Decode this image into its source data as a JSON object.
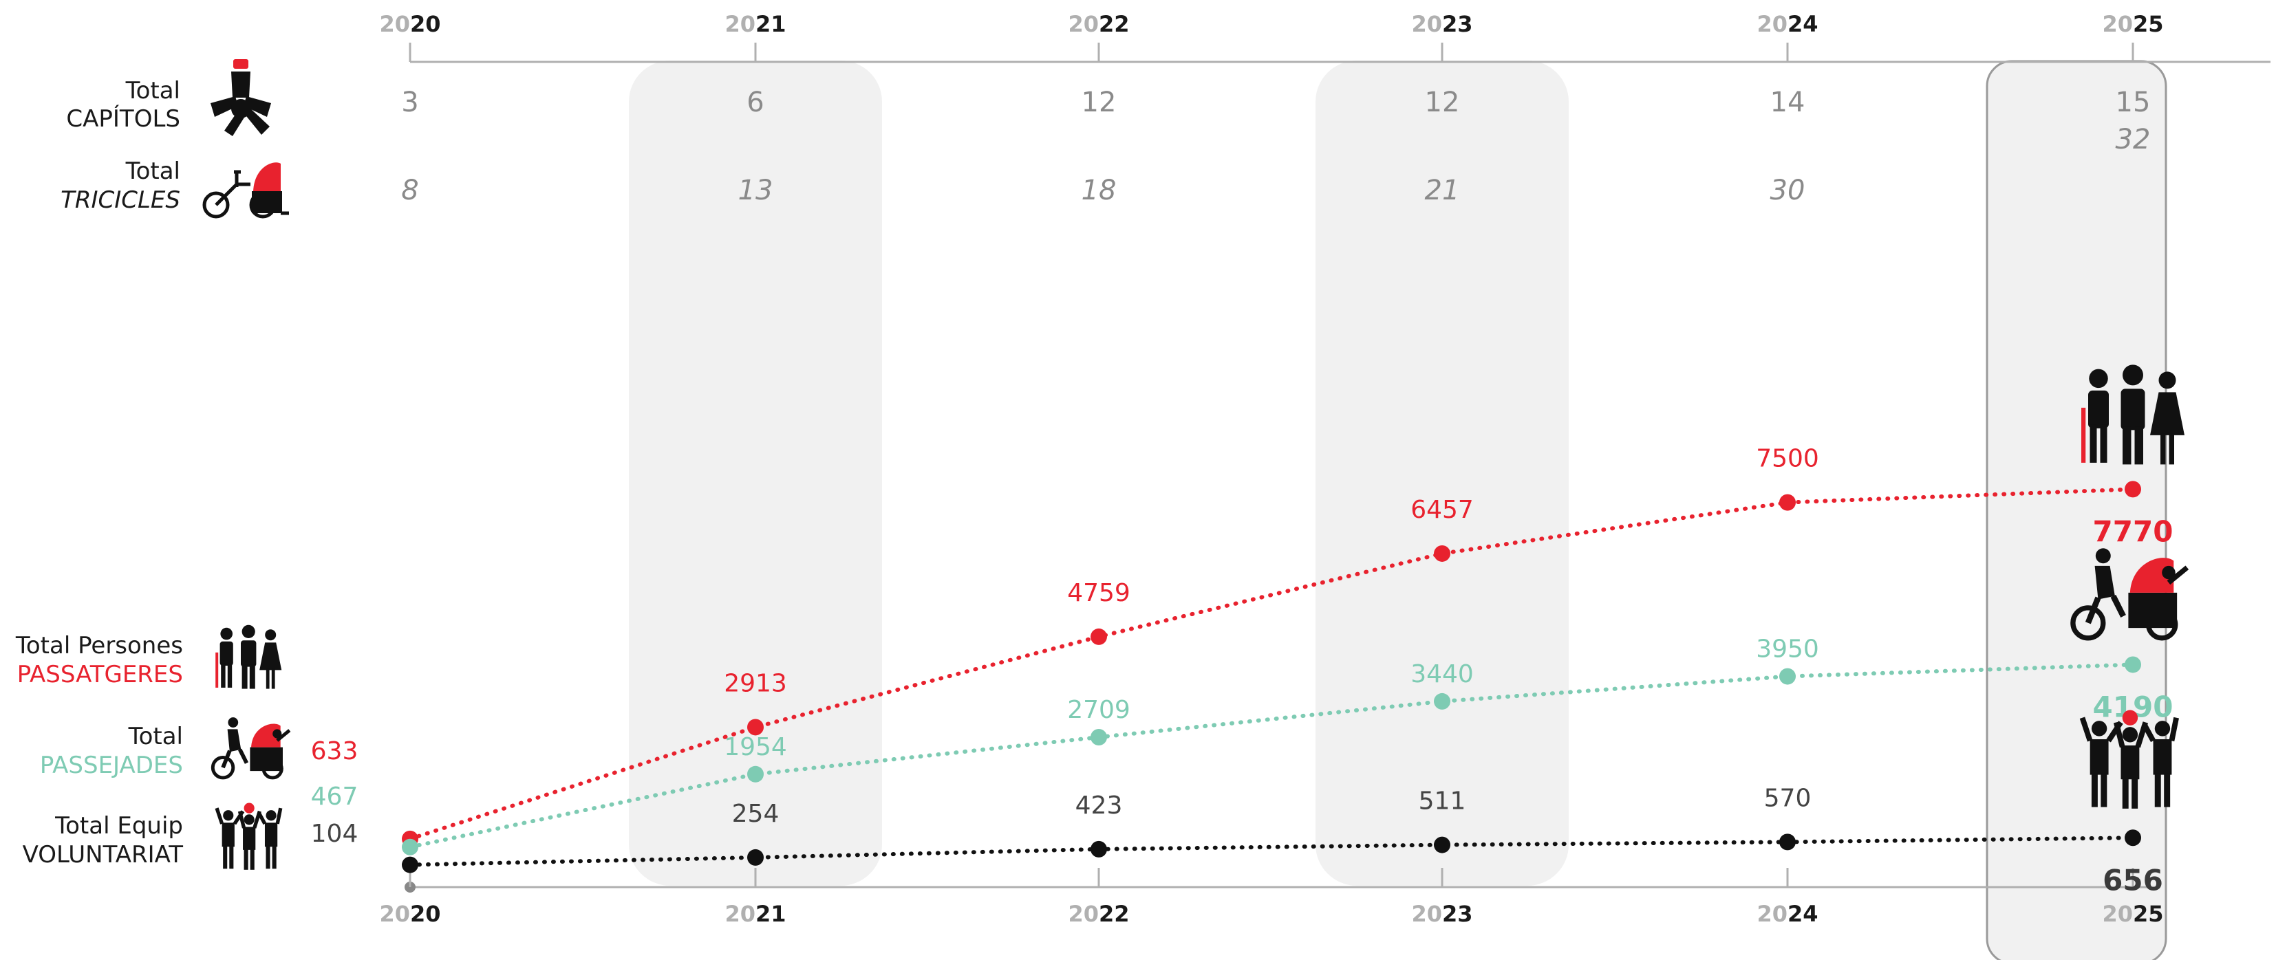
{
  "chart_data": {
    "type": "line",
    "x": [
      "2020",
      "2021",
      "2022",
      "2023",
      "2024",
      "2025"
    ],
    "x_label_parts": [
      {
        "prefix": "20",
        "suffix": "20"
      },
      {
        "prefix": "20",
        "suffix": "21"
      },
      {
        "prefix": "20",
        "suffix": "22"
      },
      {
        "prefix": "20",
        "suffix": "23"
      },
      {
        "prefix": "20",
        "suffix": "24"
      },
      {
        "prefix": "20",
        "suffix": "25"
      }
    ],
    "highlighted_years": [
      "2021",
      "2023"
    ],
    "current_year": "2025",
    "series": [
      {
        "key": "passatgeres",
        "values": [
          633,
          2913,
          4759,
          6457,
          7500,
          7770
        ],
        "color": "#e8222e",
        "icon": "group-of-people-icon"
      },
      {
        "key": "passejades",
        "values": [
          467,
          1954,
          2709,
          3440,
          3950,
          4190
        ],
        "color": "#7ecbb3",
        "icon": "trishaw-ride-icon"
      },
      {
        "key": "voluntariat",
        "values": [
          104,
          254,
          423,
          511,
          570,
          656
        ],
        "color": "#111111",
        "icon": "volunteer-team-icon"
      }
    ],
    "totals_rows": [
      {
        "key": "capitols",
        "values": [
          3,
          6,
          12,
          12,
          14,
          15
        ],
        "icon": "joined-hands-icon"
      },
      {
        "key": "tricicles",
        "values": [
          8,
          13,
          18,
          21,
          30,
          32
        ],
        "icon": "trishaw-icon"
      }
    ],
    "ylim": [
      0,
      8200
    ],
    "grid": false,
    "legend_position": "left"
  },
  "legend": {
    "capitols": {
      "line1": "Total",
      "line2": "CAPÍTOLS"
    },
    "tricicles": {
      "line1": "Total",
      "line2": "TRICICLES"
    },
    "passatgeres": {
      "line1": "Total Persones",
      "line2": "PASSATGERES"
    },
    "passejades": {
      "line1": "Total",
      "line2": "PASSEJADES"
    },
    "voluntariat": {
      "line1": "Total Equip",
      "line2": "VOLUNTARIAT"
    }
  }
}
